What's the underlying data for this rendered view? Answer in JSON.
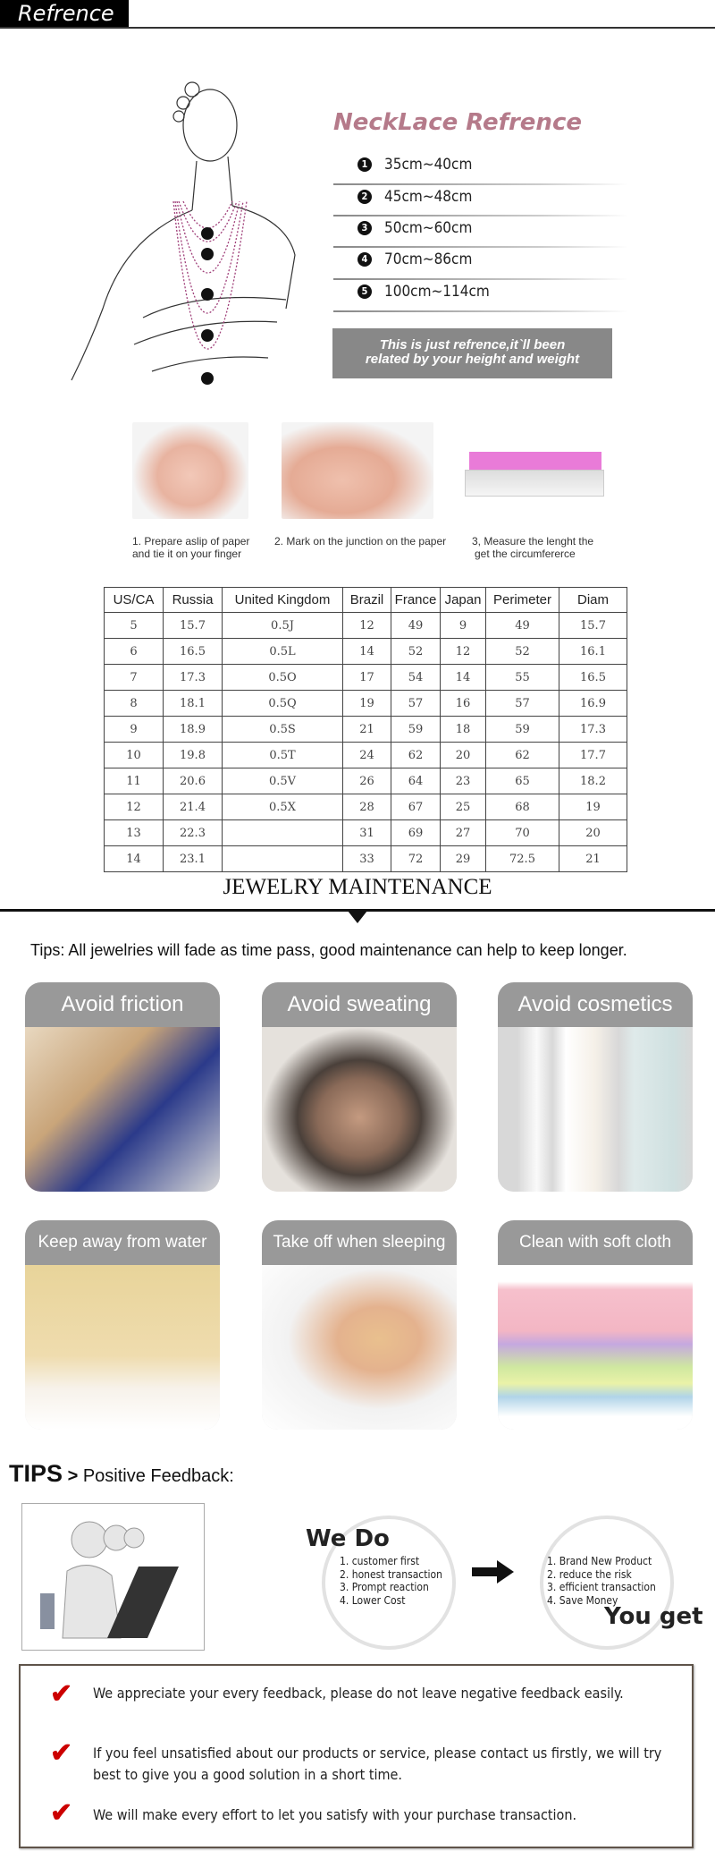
{
  "header": {
    "title": "Refrence"
  },
  "necklace": {
    "title": "NeckLace Refrence",
    "items": [
      {
        "num": "1",
        "range": "35cm~40cm"
      },
      {
        "num": "2",
        "range": "45cm~48cm"
      },
      {
        "num": "3",
        "range": "50cm~60cm"
      },
      {
        "num": "4",
        "range": "70cm~86cm"
      },
      {
        "num": "5",
        "range": "100cm~114cm"
      }
    ],
    "note_line1": "This is just refrence,it`ll been",
    "note_line2": "related by your height and weight"
  },
  "ring_steps": [
    {
      "line1": "1. Prepare aslip of paper",
      "line2": "and tie it on your finger"
    },
    {
      "line1": "2. Mark on the junction on the paper",
      "line2": ""
    },
    {
      "line1": "3, Measure the lenght the",
      "line2": "get the circumfererce"
    }
  ],
  "size_table": {
    "headers": [
      "US/CA",
      "Russia",
      "United Kingdom",
      "Brazil",
      "France",
      "Japan",
      "Perimeter",
      "Diam"
    ],
    "rows": [
      [
        "5",
        "15.7",
        "0.5J",
        "12",
        "49",
        "9",
        "49",
        "15.7"
      ],
      [
        "6",
        "16.5",
        "0.5L",
        "14",
        "52",
        "12",
        "52",
        "16.1"
      ],
      [
        "7",
        "17.3",
        "0.5O",
        "17",
        "54",
        "14",
        "55",
        "16.5"
      ],
      [
        "8",
        "18.1",
        "0.5Q",
        "19",
        "57",
        "16",
        "57",
        "16.9"
      ],
      [
        "9",
        "18.9",
        "0.5S",
        "21",
        "59",
        "18",
        "59",
        "17.3"
      ],
      [
        "10",
        "19.8",
        "0.5T",
        "24",
        "62",
        "20",
        "62",
        "17.7"
      ],
      [
        "11",
        "20.6",
        "0.5V",
        "26",
        "64",
        "23",
        "65",
        "18.2"
      ],
      [
        "12",
        "21.4",
        "0.5X",
        "28",
        "67",
        "25",
        "68",
        "19"
      ],
      [
        "13",
        "22.3",
        "",
        "31",
        "69",
        "27",
        "70",
        "20"
      ],
      [
        "14",
        "23.1",
        "",
        "33",
        "72",
        "29",
        "72.5",
        "21"
      ]
    ]
  },
  "maintenance": {
    "title": "JEWELRY MAINTENANCE",
    "tips": "Tips: All jewelries will fade as time pass, good maintenance can help to keep longer.",
    "cards": [
      {
        "label": "Avoid friction"
      },
      {
        "label": "Avoid sweating"
      },
      {
        "label": "Avoid cosmetics"
      },
      {
        "label": "Keep away from water"
      },
      {
        "label": "Take off when sleeping"
      },
      {
        "label": "Clean with soft cloth"
      }
    ]
  },
  "feedback": {
    "tips_label": "TIPS",
    "tips_sep": ">",
    "tips_title": "Positive Feedback:",
    "we_do_title": "We Do",
    "we_do": [
      "1. customer first",
      "2. honest transaction",
      "3. Prompt reaction",
      "4. Lower Cost"
    ],
    "you_get_title": "You get",
    "you_get": [
      "1. Brand New Product",
      "2. reduce the risk",
      "3. efficient transaction",
      "4. Save Money"
    ],
    "notes": [
      "We appreciate your every feedback, please do not leave negative feedback easily.",
      "If you feel unsatisfied about our products or service, please contact us firstly, we will try best to give you a good solution in a short time.",
      "We will make every effort to let you satisfy with your purchase transaction."
    ]
  },
  "colors": {
    "title_pink": "#b57a8a",
    "check_red": "#cc0000",
    "card_header": "#999999"
  }
}
